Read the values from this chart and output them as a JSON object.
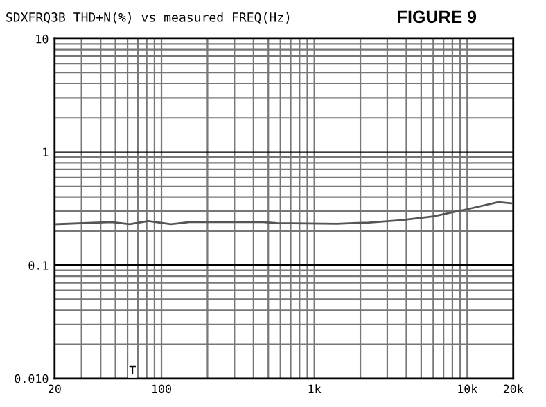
{
  "chart_data": {
    "type": "line",
    "title": "SDXFRQ3B THD+N(%) vs measured FREQ(Hz)",
    "subtitle": "FIGURE 9",
    "log": "xy",
    "xlim": [
      20,
      20000
    ],
    "ylim": [
      0.01,
      10
    ],
    "xticks": [
      20,
      100,
      {
        "value": 1000,
        "label": "1k"
      },
      {
        "value": 10000,
        "label": "10k"
      },
      {
        "value": 20000,
        "label": "20k"
      }
    ],
    "yticks": [
      {
        "value": 0.01,
        "label": "0.010"
      },
      0.1,
      1,
      10
    ],
    "grid": true,
    "marker": "none",
    "line_style": "solid",
    "annotations": [
      "T"
    ],
    "series": [
      {
        "color": "#555555",
        "x": [
          20,
          47,
          62,
          82,
          115,
          152,
          460,
          570,
          1400,
          2270,
          3700,
          6000,
          9800,
          16000,
          20000
        ],
        "values": [
          0.23,
          0.24,
          0.23,
          0.245,
          0.23,
          0.24,
          0.24,
          0.235,
          0.232,
          0.238,
          0.25,
          0.27,
          0.31,
          0.36,
          0.35
        ]
      }
    ]
  }
}
